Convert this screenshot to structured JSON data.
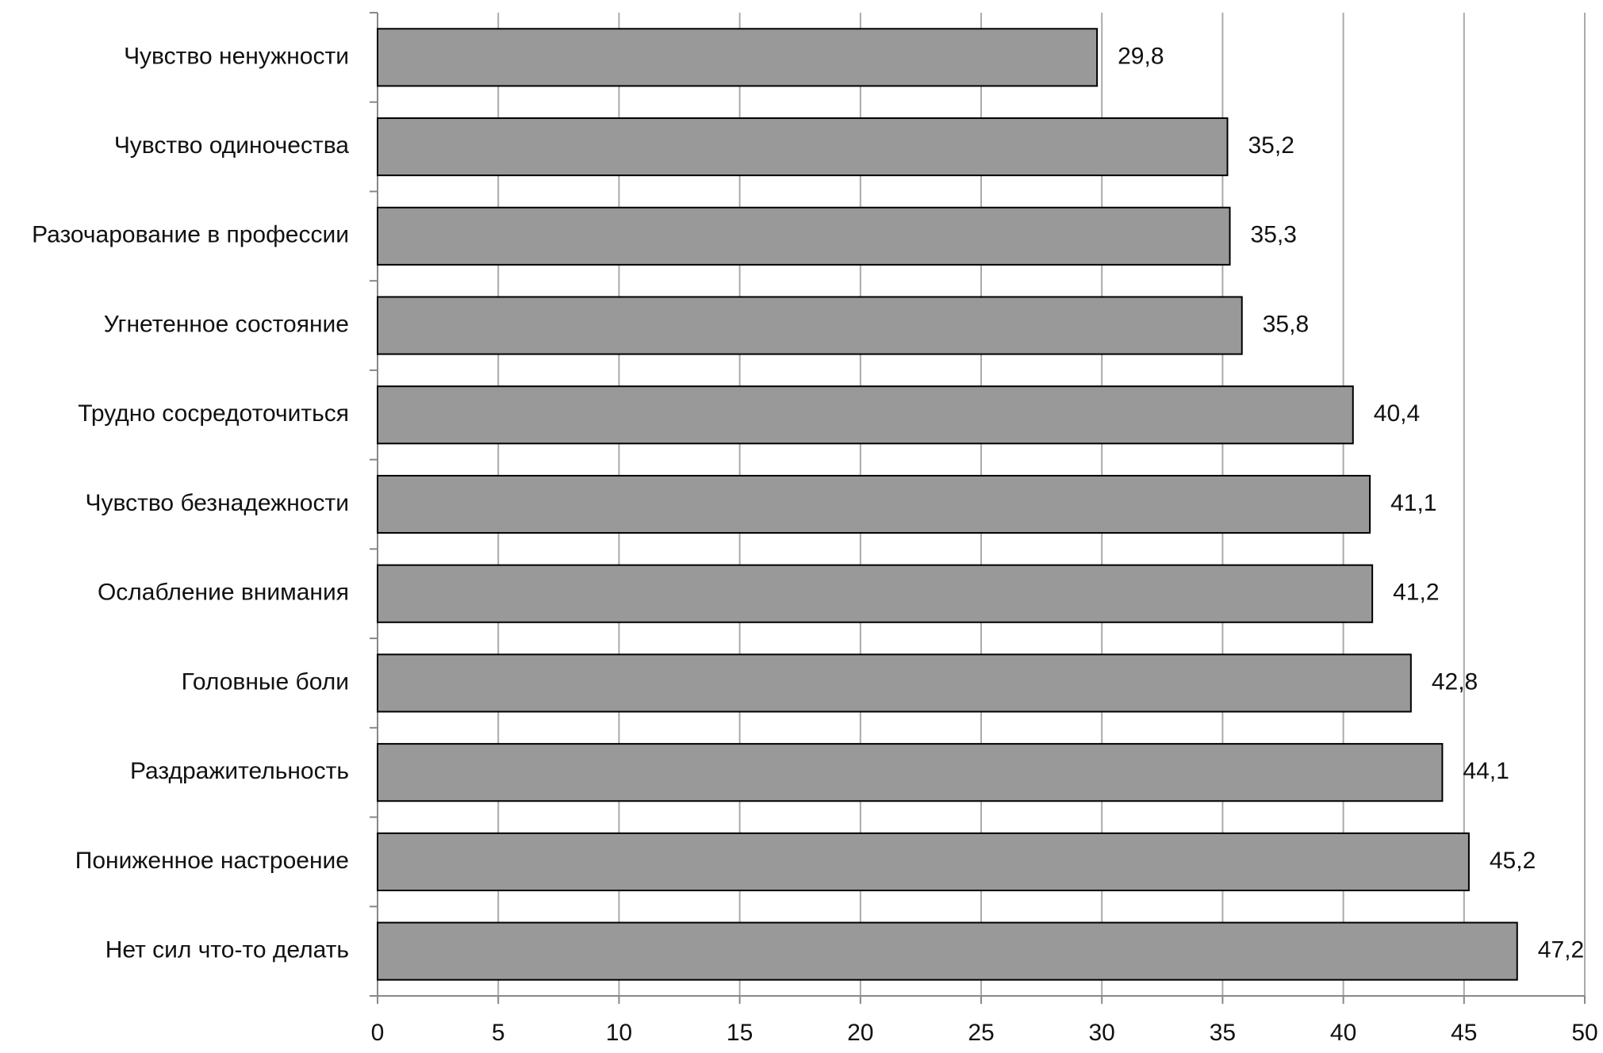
{
  "chart_data": {
    "type": "hbar",
    "categories": [
      "Чувство ненужности",
      "Чувство одиночества",
      "Разочарование в профессии",
      "Угнетенное состояние",
      "Трудно сосредоточиться",
      "Чувство безнадежности",
      "Ослабление внимания",
      "Головные боли",
      "Раздражительность",
      "Пониженное настроение",
      "Нет сил что-то делать"
    ],
    "values": [
      29.8,
      35.2,
      35.3,
      35.8,
      40.4,
      41.1,
      41.2,
      42.8,
      44.1,
      45.2,
      47.2
    ],
    "value_labels": [
      "29,8",
      "35,2",
      "35,3",
      "35,8",
      "40,4",
      "41,1",
      "41,2",
      "42,8",
      "44,1",
      "45,2",
      "47,2"
    ],
    "color": "#999999",
    "xlim": [
      0,
      50
    ],
    "xticks": [
      0,
      5,
      10,
      15,
      20,
      25,
      30,
      35,
      40,
      45,
      50
    ],
    "grid": true
  }
}
